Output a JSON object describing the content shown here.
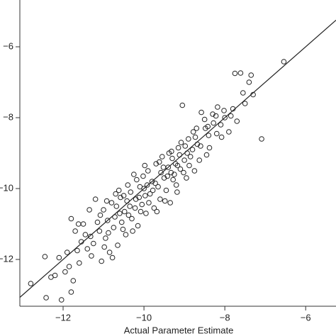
{
  "chart_data": {
    "type": "scatter",
    "x_label": "Actual Parameter Estimate",
    "xlim": [
      -13.07,
      -5.25
    ],
    "ylim": [
      -13.32,
      -4.68
    ],
    "xticks": [
      {
        "value": -12,
        "label": "−12"
      },
      {
        "value": -10,
        "label": "−10"
      },
      {
        "value": -8,
        "label": "−8"
      },
      {
        "value": -6,
        "label": "−6"
      }
    ],
    "yticks": [
      {
        "value": -6,
        "label": "−6"
      },
      {
        "value": -8,
        "label": "−8"
      },
      {
        "value": -10,
        "label": "−10"
      },
      {
        "value": -12,
        "label": "−12"
      }
    ],
    "marker_color": "#222222",
    "x": [
      -12.8,
      -12.42,
      -12.04,
      -11.8,
      -12.3,
      -12.1,
      -12.45,
      -11.95,
      -11.75,
      -11.6,
      -11.9,
      -11.7,
      -11.55,
      -11.4,
      -11.3,
      -11.8,
      -11.65,
      -11.5,
      -11.35,
      -11.25,
      -11.2,
      -11.1,
      -11.05,
      -11.0,
      -10.95,
      -10.9,
      -10.85,
      -10.8,
      -10.75,
      -10.7,
      -10.65,
      -10.6,
      -10.55,
      -10.5,
      -10.45,
      -10.4,
      -10.35,
      -10.3,
      -10.25,
      -10.2,
      -10.15,
      -10.1,
      -10.05,
      -10.0,
      -9.95,
      -9.9,
      -9.85,
      -9.8,
      -9.75,
      -9.7,
      -9.65,
      -9.6,
      -9.55,
      -9.5,
      -9.45,
      -9.4,
      -9.35,
      -9.3,
      -9.25,
      -9.2,
      -9.15,
      -9.1,
      -9.05,
      -9.0,
      -8.95,
      -8.9,
      -8.85,
      -8.8,
      -8.75,
      -8.7,
      -8.6,
      -8.5,
      -8.45,
      -8.4,
      -8.3,
      -8.2,
      -8.1,
      -8.0,
      -7.9,
      -7.8,
      -7.75,
      -7.7,
      -7.61,
      -7.5,
      -7.4,
      -7.3,
      -7.35,
      -7.09,
      -6.54,
      -12.2,
      -11.85,
      -11.45,
      -11.15,
      -10.92,
      -10.78,
      -10.62,
      -10.48,
      -10.33,
      -10.18,
      -10.08,
      -9.98,
      -9.88,
      -9.72,
      -9.58,
      -9.48,
      -9.38,
      -9.28,
      -9.18,
      -9.08,
      -8.98,
      -8.88,
      -8.78,
      -8.68,
      -8.58,
      -8.48,
      -8.38,
      -8.28,
      -8.18,
      -8.08,
      -10.22,
      -10.42,
      -10.58,
      -10.72,
      -10.02,
      -9.92,
      -9.62,
      -9.42,
      -9.32,
      -9.22,
      -9.12,
      -9.02,
      -11.62,
      -11.32,
      -11.08,
      -10.98,
      -10.88,
      -10.68,
      -10.52,
      -10.38,
      -10.28,
      -10.12,
      -9.97,
      -9.78,
      -9.68,
      -9.52,
      -9.33,
      -9.17,
      -8.93,
      -8.73,
      -8.63,
      -8.42,
      -8.22,
      -8.02,
      -7.85,
      -7.55
    ],
    "values": [
      -12.68,
      -13.08,
      -13.14,
      -12.92,
      -12.5,
      -11.95,
      -11.92,
      -12.35,
      -12.6,
      -12.1,
      -11.8,
      -11.2,
      -11.5,
      -11.7,
      -11.9,
      -10.85,
      -11.75,
      -11.0,
      -10.6,
      -11.55,
      -10.3,
      -11.2,
      -12.05,
      -10.6,
      -11.4,
      -10.9,
      -11.8,
      -10.4,
      -11.1,
      -10.15,
      -11.6,
      -10.7,
      -10.95,
      -10.2,
      -11.3,
      -9.9,
      -10.5,
      -10.85,
      -9.6,
      -10.3,
      -11.05,
      -9.95,
      -10.45,
      -10.0,
      -10.7,
      -9.5,
      -10.15,
      -9.8,
      -10.55,
      -9.3,
      -9.95,
      -10.3,
      -9.1,
      -9.7,
      -10.05,
      -9.4,
      -10.4,
      -9.15,
      -9.6,
      -9.9,
      -8.85,
      -9.45,
      -7.65,
      -9.2,
      -9.7,
      -8.6,
      -9.1,
      -8.9,
      -9.5,
      -8.3,
      -8.8,
      -8.05,
      -9.05,
      -8.5,
      -7.9,
      -8.45,
      -8.2,
      -8.0,
      -8.4,
      -7.75,
      -6.75,
      -8.1,
      -6.74,
      -7.6,
      -7.0,
      -7.35,
      -6.8,
      -8.6,
      -6.42,
      -12.45,
      -12.2,
      -11.3,
      -10.95,
      -10.35,
      -11.95,
      -10.05,
      -10.65,
      -10.1,
      -9.75,
      -10.65,
      -9.35,
      -10.4,
      -9.85,
      -9.55,
      -10.35,
      -9.0,
      -9.75,
      -10.1,
      -8.7,
      -8.8,
      -9.35,
      -8.4,
      -8.75,
      -7.85,
      -8.3,
      -8.85,
      -8.15,
      -7.7,
      -8.55,
      -10.55,
      -10.35,
      -10.25,
      -10.8,
      -9.65,
      -9.9,
      -9.25,
      -9.65,
      -8.95,
      -9.3,
      -9.05,
      -9.55,
      -11.0,
      -11.35,
      -10.75,
      -11.65,
      -11.25,
      -10.5,
      -11.15,
      -10.75,
      -11.2,
      -10.25,
      -10.2,
      -10.05,
      -10.65,
      -9.4,
      -9.55,
      -9.35,
      -9.0,
      -8.55,
      -9.2,
      -8.25,
      -7.95,
      -7.8,
      -7.95,
      -7.3
    ]
  }
}
